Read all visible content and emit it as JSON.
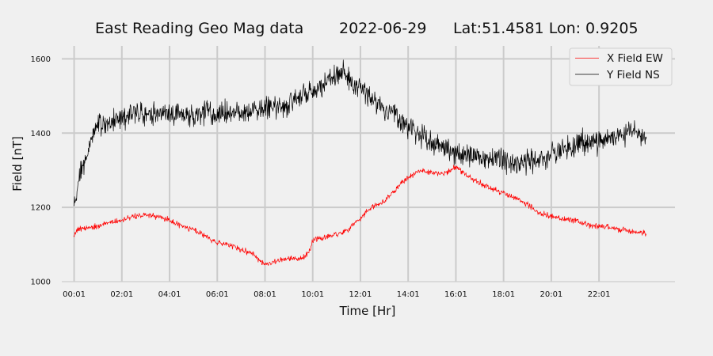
{
  "chart_data": {
    "type": "line",
    "title_parts": {
      "name": "East Reading Geo Mag data",
      "date": "2022-06-29",
      "location": "Lat:51.4581  Lon: 0.9205"
    },
    "xlabel": "Time  [Hr]",
    "ylabel": "Field  [nT]",
    "xlim": [
      -0.5,
      25.2
    ],
    "ylim": [
      1000,
      1635
    ],
    "x_ticks": [
      {
        "value": 0.0167,
        "label": "00:01"
      },
      {
        "value": 2.0167,
        "label": "02:01"
      },
      {
        "value": 4.0167,
        "label": "04:01"
      },
      {
        "value": 6.0167,
        "label": "06:01"
      },
      {
        "value": 8.0167,
        "label": "08:01"
      },
      {
        "value": 10.0167,
        "label": "10:01"
      },
      {
        "value": 12.0167,
        "label": "12:01"
      },
      {
        "value": 14.0167,
        "label": "14:01"
      },
      {
        "value": 16.0167,
        "label": "16:01"
      },
      {
        "value": 18.0167,
        "label": "18:01"
      },
      {
        "value": 20.0167,
        "label": "20:01"
      },
      {
        "value": 22.0167,
        "label": "22:01"
      }
    ],
    "y_ticks": [
      {
        "value": 1000,
        "label": "1000"
      },
      {
        "value": 1200,
        "label": "1200"
      },
      {
        "value": 1400,
        "label": "1400"
      },
      {
        "value": 1600,
        "label": "1600"
      }
    ],
    "grid": true,
    "legend_position": "top-right",
    "series": [
      {
        "name": "X Field EW",
        "color": "#ff0000",
        "noise_amplitude": 7,
        "x": [
          0,
          0.15,
          0.5,
          1,
          1.5,
          2,
          2.5,
          3,
          3.5,
          4,
          4.5,
          5,
          5.5,
          6,
          6.5,
          7,
          7.5,
          8,
          8.5,
          9,
          9.5,
          9.9,
          10,
          10.5,
          11,
          11.5,
          12,
          12.5,
          13,
          13.5,
          14,
          14.5,
          15,
          15.5,
          16,
          16.5,
          17,
          17.5,
          18,
          18.5,
          19,
          19.5,
          20,
          20.5,
          21,
          21.5,
          22,
          22.5,
          23,
          23.5,
          24
        ],
        "y": [
          1125,
          1140,
          1145,
          1150,
          1160,
          1165,
          1175,
          1180,
          1175,
          1165,
          1150,
          1140,
          1125,
          1105,
          1100,
          1085,
          1075,
          1045,
          1055,
          1065,
          1060,
          1080,
          1110,
          1120,
          1125,
          1140,
          1170,
          1200,
          1215,
          1250,
          1280,
          1300,
          1295,
          1290,
          1310,
          1285,
          1265,
          1250,
          1240,
          1225,
          1210,
          1185,
          1175,
          1170,
          1165,
          1155,
          1150,
          1145,
          1140,
          1135,
          1130
        ]
      },
      {
        "name": "Y Field NS",
        "color": "#000000",
        "noise_amplitude": 28,
        "x": [
          0,
          0.15,
          0.3,
          0.5,
          0.8,
          1,
          1.5,
          2,
          2.5,
          3,
          3.5,
          4,
          4.5,
          5,
          5.5,
          6,
          6.5,
          7,
          7.5,
          8,
          8.5,
          9,
          9.5,
          10,
          10.5,
          11,
          11.3,
          11.5,
          12,
          12.5,
          13,
          13.5,
          14,
          14.5,
          15,
          15.5,
          16,
          16.5,
          17,
          17.5,
          18,
          18.5,
          19,
          19.5,
          20,
          20.5,
          21,
          21.5,
          22,
          22.5,
          23,
          23.5,
          24
        ],
        "y": [
          1190,
          1250,
          1300,
          1340,
          1390,
          1420,
          1435,
          1445,
          1450,
          1455,
          1455,
          1450,
          1445,
          1450,
          1455,
          1450,
          1455,
          1460,
          1460,
          1465,
          1470,
          1480,
          1500,
          1510,
          1530,
          1555,
          1570,
          1545,
          1520,
          1490,
          1465,
          1445,
          1410,
          1395,
          1375,
          1360,
          1345,
          1340,
          1335,
          1330,
          1325,
          1320,
          1320,
          1325,
          1340,
          1355,
          1365,
          1375,
          1380,
          1385,
          1395,
          1410,
          1375
        ]
      }
    ]
  }
}
